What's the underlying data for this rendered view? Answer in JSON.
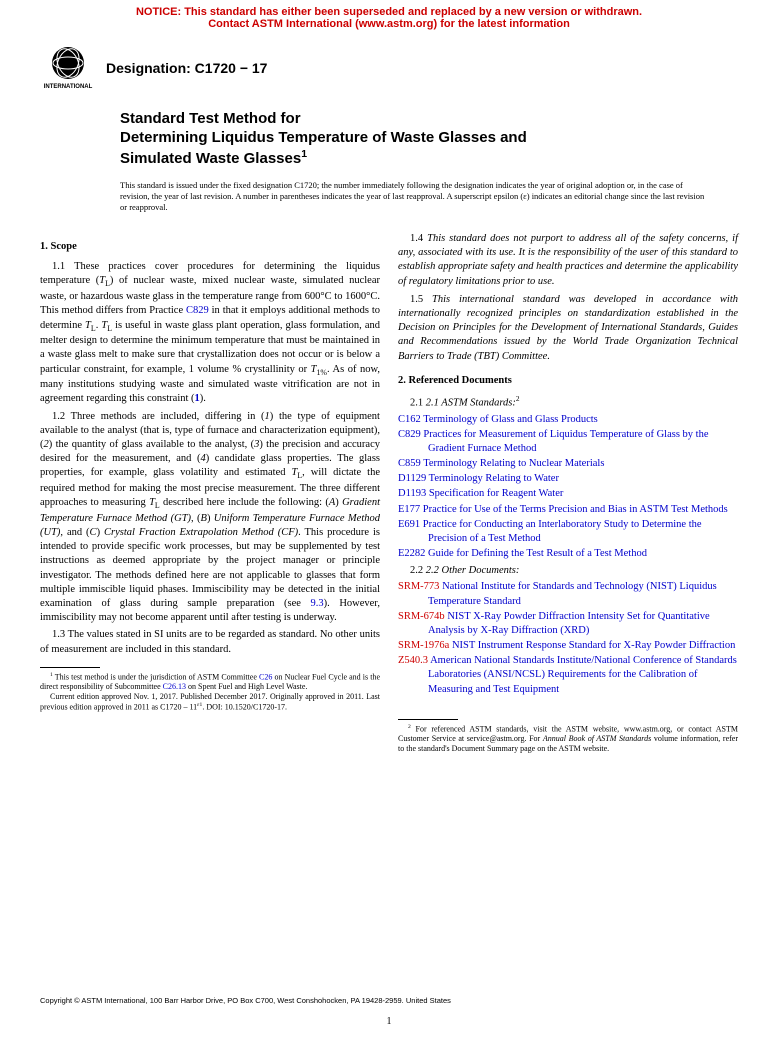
{
  "notice": {
    "line1": "NOTICE: This standard has either been superseded and replaced by a new version or withdrawn.",
    "line2": "Contact ASTM International (www.astm.org) for the latest information",
    "color": "#cc0000",
    "fontsize": 11
  },
  "logo": {
    "text_top": "INTERNATIONAL",
    "color": "#000000"
  },
  "designation": {
    "label": "Designation: C1720 − 17",
    "fontsize": 14
  },
  "title": {
    "line1": "Standard Test Method for",
    "line2": "Determining Liquidus Temperature of Waste Glasses and",
    "line3": "Simulated Waste Glasses",
    "sup": "1",
    "fontsize": 15
  },
  "issue_note": "This standard is issued under the fixed designation C1720; the number immediately following the designation indicates the year of original adoption or, in the case of revision, the year of last revision. A number in parentheses indicates the year of last reapproval. A superscript epsilon (ε) indicates an editorial change since the last revision or reapproval.",
  "sections": {
    "scope": {
      "head": "1. Scope",
      "p11a": "1.1 These practices cover procedures for determining the liquidus temperature (",
      "p11b": ") of nuclear waste, mixed nuclear waste, simulated nuclear waste, or hazardous waste glass in the temperature range from 600°C to 1600°C. This method differs from Practice ",
      "p11c": " in that it employs additional methods to determine ",
      "p11d": " is useful in waste glass plant operation, glass formulation, and melter design to determine the minimum temperature that must be maintained in a waste glass melt to make sure that crystallization does not occur or is below a particular constraint, for example, 1 volume % crystallinity or ",
      "p11e": ". As of now, many institutions studying waste and simulated waste vitrification are not in agreement regarding this constraint (",
      "p11ref": "1",
      "p11f": ").",
      "p12a": "1.2 Three methods are included, differing in (",
      "p12b": ") the type of equipment available to the analyst (that is, type of furnace and characterization equipment), (",
      "p12c": ") the quantity of glass available to the analyst, (",
      "p12d": ") the precision and accuracy desired for the measurement, and (",
      "p12e": ") candidate glass properties. The glass properties, for example, glass volatility and estimated ",
      "p12f": ", will dictate the required method for making the most precise measurement. The three different approaches to measuring ",
      "p12g": " described here include the following: (",
      "p12h": "Gradient Temperature Furnace Method (GT)",
      "p12i": "Uniform Temperature Furnace Method (UT)",
      "p12j": ", and (",
      "p12k": "Crystal Fraction Extrapolation Method (CF)",
      "p12l": ". This procedure is intended to provide specific work processes, but may be supplemented by test instructions as deemed appropriate by the project manager or principle investigator. The methods defined here are not applicable to glasses that form multiple immiscible liquid phases. Immiscibility may be detected in the initial examination of glass during sample preparation (see ",
      "p12ref": "9.3",
      "p12m": "). However, immiscibility may not become apparent until after testing is underway.",
      "p13": "1.3 The values stated in SI units are to be regarded as standard. No other units of measurement are included in this standard.",
      "p14": "1.4 This standard does not purport to address all of the safety concerns, if any, associated with its use. It is the responsibility of the user of this standard to establish appropriate safety and health practices and determine the applicability of regulatory limitations prior to use.",
      "p15": "1.5 This international standard was developed in accordance with internationally recognized principles on standardization established in the Decision on Principles for the Development of International Standards, Guides and Recommendations issued by the World Trade Organization Technical Barriers to Trade (TBT) Committee."
    },
    "refs": {
      "head": "2. Referenced Documents",
      "sub1": "2.1 ASTM Standards:",
      "sub1sup": "2",
      "astm": [
        {
          "code": "C162",
          "title": "Terminology of Glass and Glass Products"
        },
        {
          "code": "C829",
          "title": "Practices for Measurement of Liquidus Temperature of Glass by the Gradient Furnace Method"
        },
        {
          "code": "C859",
          "title": "Terminology Relating to Nuclear Materials"
        },
        {
          "code": "D1129",
          "title": "Terminology Relating to Water"
        },
        {
          "code": "D1193",
          "title": "Specification for Reagent Water"
        },
        {
          "code": "E177",
          "title": "Practice for Use of the Terms Precision and Bias in ASTM Test Methods"
        },
        {
          "code": "E691",
          "title": "Practice for Conducting an Interlaboratory Study to Determine the Precision of a Test Method"
        },
        {
          "code": "E2282",
          "title": "Guide for Defining the Test Result of a Test Method"
        }
      ],
      "sub2": "2.2 Other Documents:",
      "other": [
        {
          "code": "SRM-773",
          "title": "National Institute for Standards and Technology (NIST) Liquidus Temperature Standard"
        },
        {
          "code": "SRM-674b",
          "title": "NIST X-Ray Powder Diffraction Intensity Set for Quantitative Analysis by X-Ray Diffraction (XRD)"
        },
        {
          "code": "SRM-1976a",
          "title": "NIST Instrument Response Standard for X-Ray Powder Diffraction"
        },
        {
          "code": "Z540.3",
          "title": "American National Standards Institute/National Conference of Standards Laboratories (ANSI/NCSL) Requirements for the Calibration of Measuring and Test Equipment"
        }
      ]
    }
  },
  "footnotes": {
    "f1a": " This test method is under the jurisdiction of ASTM Committee ",
    "f1b": " on Nuclear Fuel Cycle and is the direct responsibility of Subcommittee ",
    "f1c": " on Spent Fuel and High Level Waste.",
    "f1d": "Current edition approved Nov. 1, 2017. Published December 2017. Originally approved in 2011. Last previous edition approved in 2011 as C1720 – 11",
    "f1e": ". DOI: 10.1520/C1720-17.",
    "f2a": " For referenced ASTM standards, visit the ASTM website, www.astm.org, or contact ASTM Customer Service at service@astm.org. For ",
    "f2b": "Annual Book of ASTM Standards",
    "f2c": " volume information, refer to the standard's Document Summary page on the ASTM website.",
    "link_c26": "C26",
    "link_c2613": "C26.13"
  },
  "copyright": "Copyright © ASTM International, 100 Barr Harbor Drive, PO Box C700, West Conshohocken, PA 19428-2959. United States",
  "page_number": "1",
  "colors": {
    "link": "#0000cc",
    "red": "#cc0000",
    "text": "#000000"
  }
}
